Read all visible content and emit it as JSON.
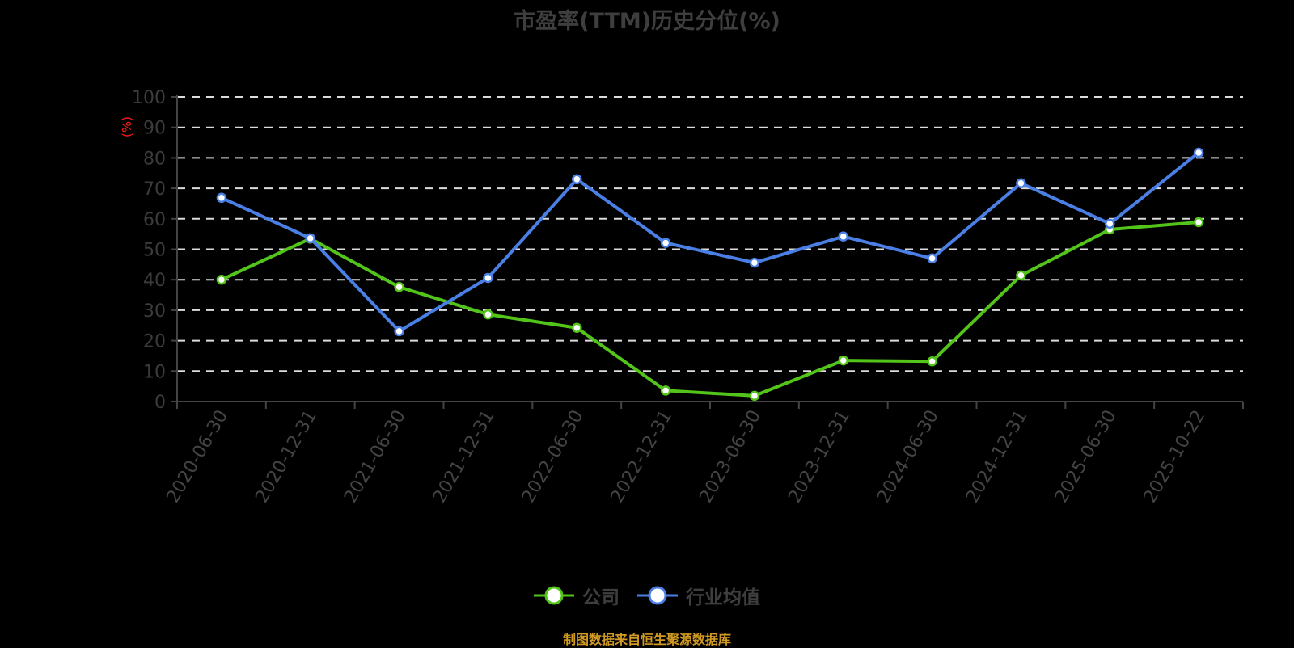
{
  "title": "市盈率(TTM)历史分位(%)",
  "footer": "制图数据来自恒生聚源数据库",
  "legend": [
    {
      "label": "公司",
      "color": "#52c41a"
    },
    {
      "label": "行业均值",
      "color": "#4a80e6"
    }
  ],
  "chart_data": {
    "type": "line",
    "title": "市盈率(TTM)历史分位(%)",
    "xlabel": "",
    "ylabel": "(%)",
    "ylim": [
      0,
      100
    ],
    "yticks": [
      0,
      10,
      20,
      30,
      40,
      50,
      60,
      70,
      80,
      90,
      100
    ],
    "grid": true,
    "legend_position": "bottom",
    "categories": [
      "2020-06-30",
      "2020-12-31",
      "2021-06-30",
      "2021-12-31",
      "2022-06-30",
      "2022-12-31",
      "2023-06-30",
      "2023-12-31",
      "2024-06-30",
      "2024-12-31",
      "2025-06-30",
      "2025-10-22"
    ],
    "series": [
      {
        "name": "公司",
        "color": "#52c41a",
        "values": [
          40.0,
          53.5,
          37.6,
          28.6,
          24.2,
          3.6,
          1.9,
          13.5,
          13.2,
          41.4,
          56.5,
          58.9
        ]
      },
      {
        "name": "行业均值",
        "color": "#4a80e6",
        "values": [
          66.9,
          53.6,
          23.1,
          40.6,
          73.0,
          52.1,
          45.6,
          54.2,
          47.0,
          71.7,
          58.4,
          81.7
        ]
      }
    ]
  }
}
